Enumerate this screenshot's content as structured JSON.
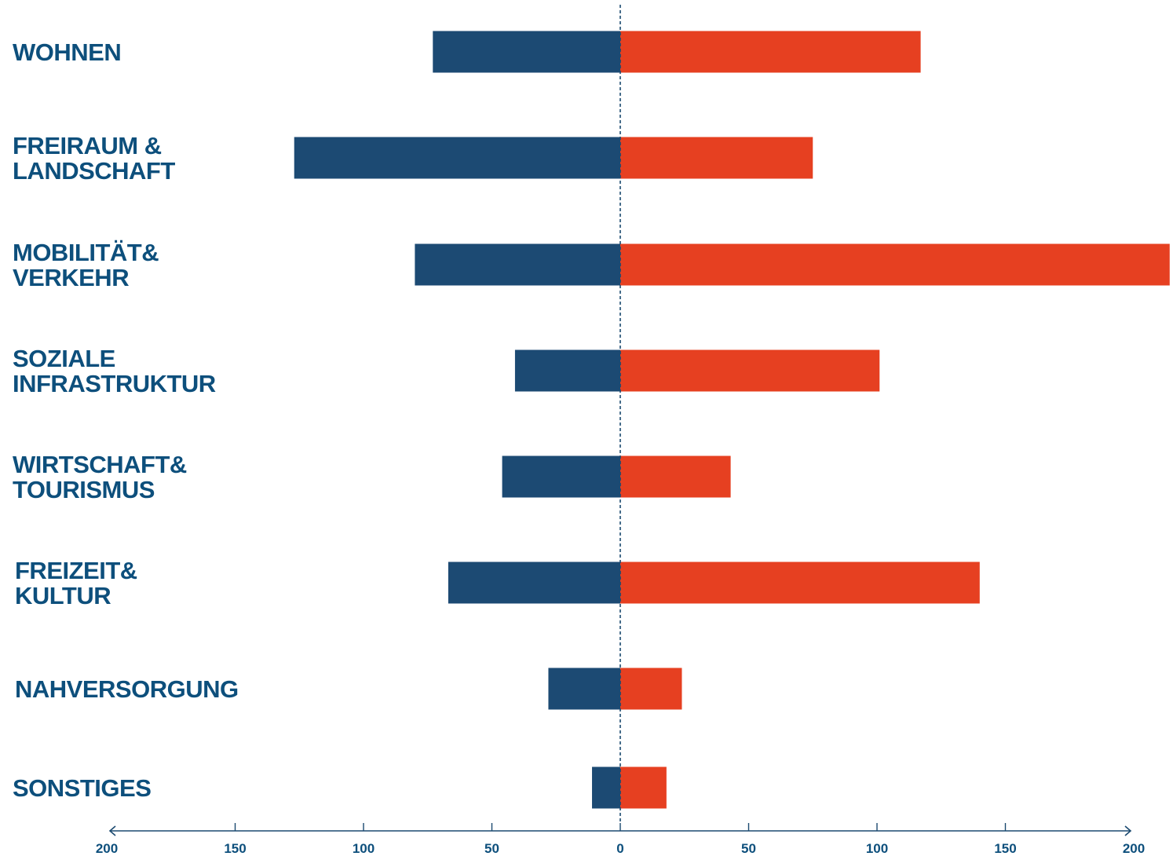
{
  "chart_data": {
    "type": "bar",
    "orientation": "horizontal-diverging",
    "title": "",
    "xlabel": "",
    "ylabel": "",
    "xlim": [
      -200,
      200
    ],
    "grid": false,
    "legend": "none",
    "zero_line": "dashed",
    "categories": [
      [
        "WOHNEN"
      ],
      [
        "FREIRAUM &",
        "LANDSCHAFT"
      ],
      [
        "MOBILITÄT&",
        "VERKEHR"
      ],
      [
        "SOZIALE",
        "INFRASTRUKTUR"
      ],
      [
        "WIRTSCHAFT&",
        "TOURISMUS"
      ],
      [
        "FREIZEIT&",
        "KULTUR"
      ],
      [
        "NAHVERSORGUNG"
      ],
      [
        "SONSTIGES"
      ]
    ],
    "series": [
      {
        "values": [
          73,
          127,
          80,
          41,
          46,
          67,
          28,
          11
        ],
        "color": "#1c4a73",
        "side": "left"
      },
      {
        "values": [
          117,
          75,
          214,
          101,
          43,
          140,
          24,
          18
        ],
        "color": "#e64021",
        "side": "right"
      }
    ],
    "xticks": [
      "200",
      "150",
      "100",
      "50",
      "0",
      "50",
      "100",
      "150",
      "200"
    ],
    "label_color": "#0d4f7c",
    "axis_color": "#1b4a70"
  }
}
